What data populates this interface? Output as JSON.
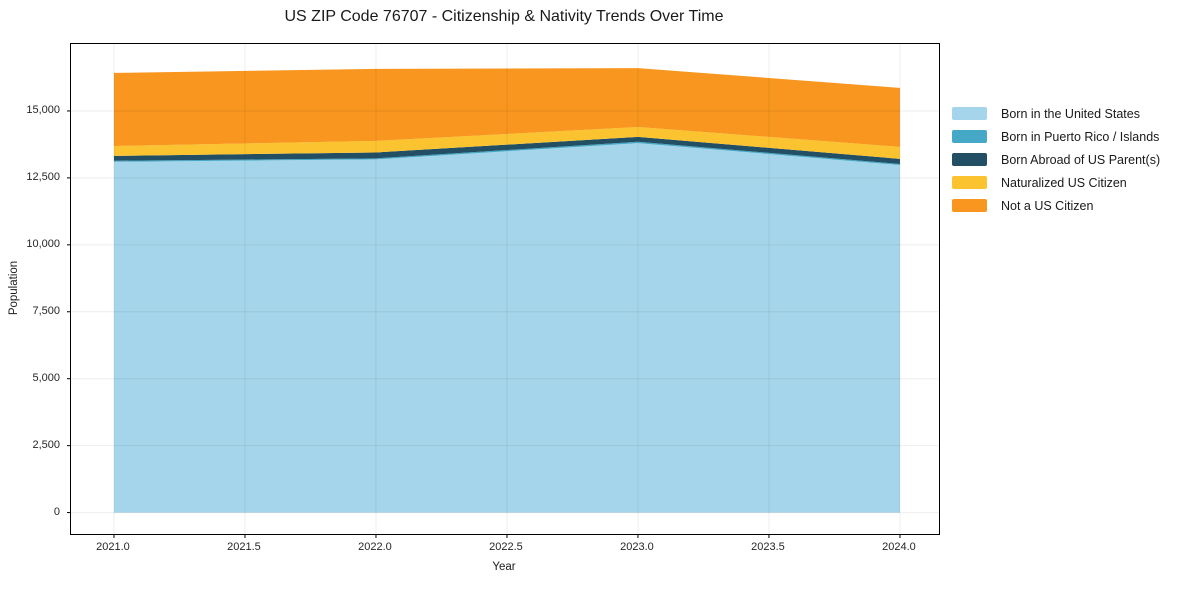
{
  "chart_data": {
    "type": "area",
    "stacked": true,
    "title": "US ZIP Code 76707 - Citizenship & Nativity Trends Over Time",
    "xlabel": "Year",
    "ylabel": "Population",
    "x": [
      2021,
      2022,
      2023,
      2024
    ],
    "series": [
      {
        "name": "Born in the United States",
        "color": "#a5d5ea",
        "values": [
          13100,
          13190,
          13800,
          12980
        ]
      },
      {
        "name": "Born in Puerto Rico / Islands",
        "color": "#44a8c6",
        "values": [
          40,
          40,
          50,
          40
        ]
      },
      {
        "name": "Born Abroad of US Parent(s)",
        "color": "#224f63",
        "values": [
          180,
          220,
          180,
          190
        ]
      },
      {
        "name": "Naturalized US Citizen",
        "color": "#fcc330",
        "values": [
          370,
          430,
          370,
          450
        ]
      },
      {
        "name": "Not a US Citizen",
        "color": "#f8961f",
        "values": [
          2730,
          2690,
          2200,
          2200
        ]
      }
    ],
    "xlim": [
      2020.836,
      2024.149
    ],
    "ylim": [
      -800,
      17500
    ],
    "xticks": {
      "values": [
        2021.0,
        2021.5,
        2022.0,
        2022.5,
        2023.0,
        2023.5,
        2024.0
      ],
      "labels": [
        "2021.0",
        "2021.5",
        "2022.0",
        "2022.5",
        "2023.0",
        "2023.5",
        "2024.0"
      ]
    },
    "yticks": {
      "values": [
        0,
        2500,
        5000,
        7500,
        10000,
        12500,
        15000
      ],
      "labels": [
        "0",
        "2,500",
        "5,000",
        "7,500",
        "10,000",
        "12,500",
        "15,000"
      ]
    },
    "grid": true,
    "legend_position": "right-outside",
    "grid_color": "rgba(0,0,0,0.07)",
    "spine_color": "#000000",
    "tick_color": "#262626"
  }
}
